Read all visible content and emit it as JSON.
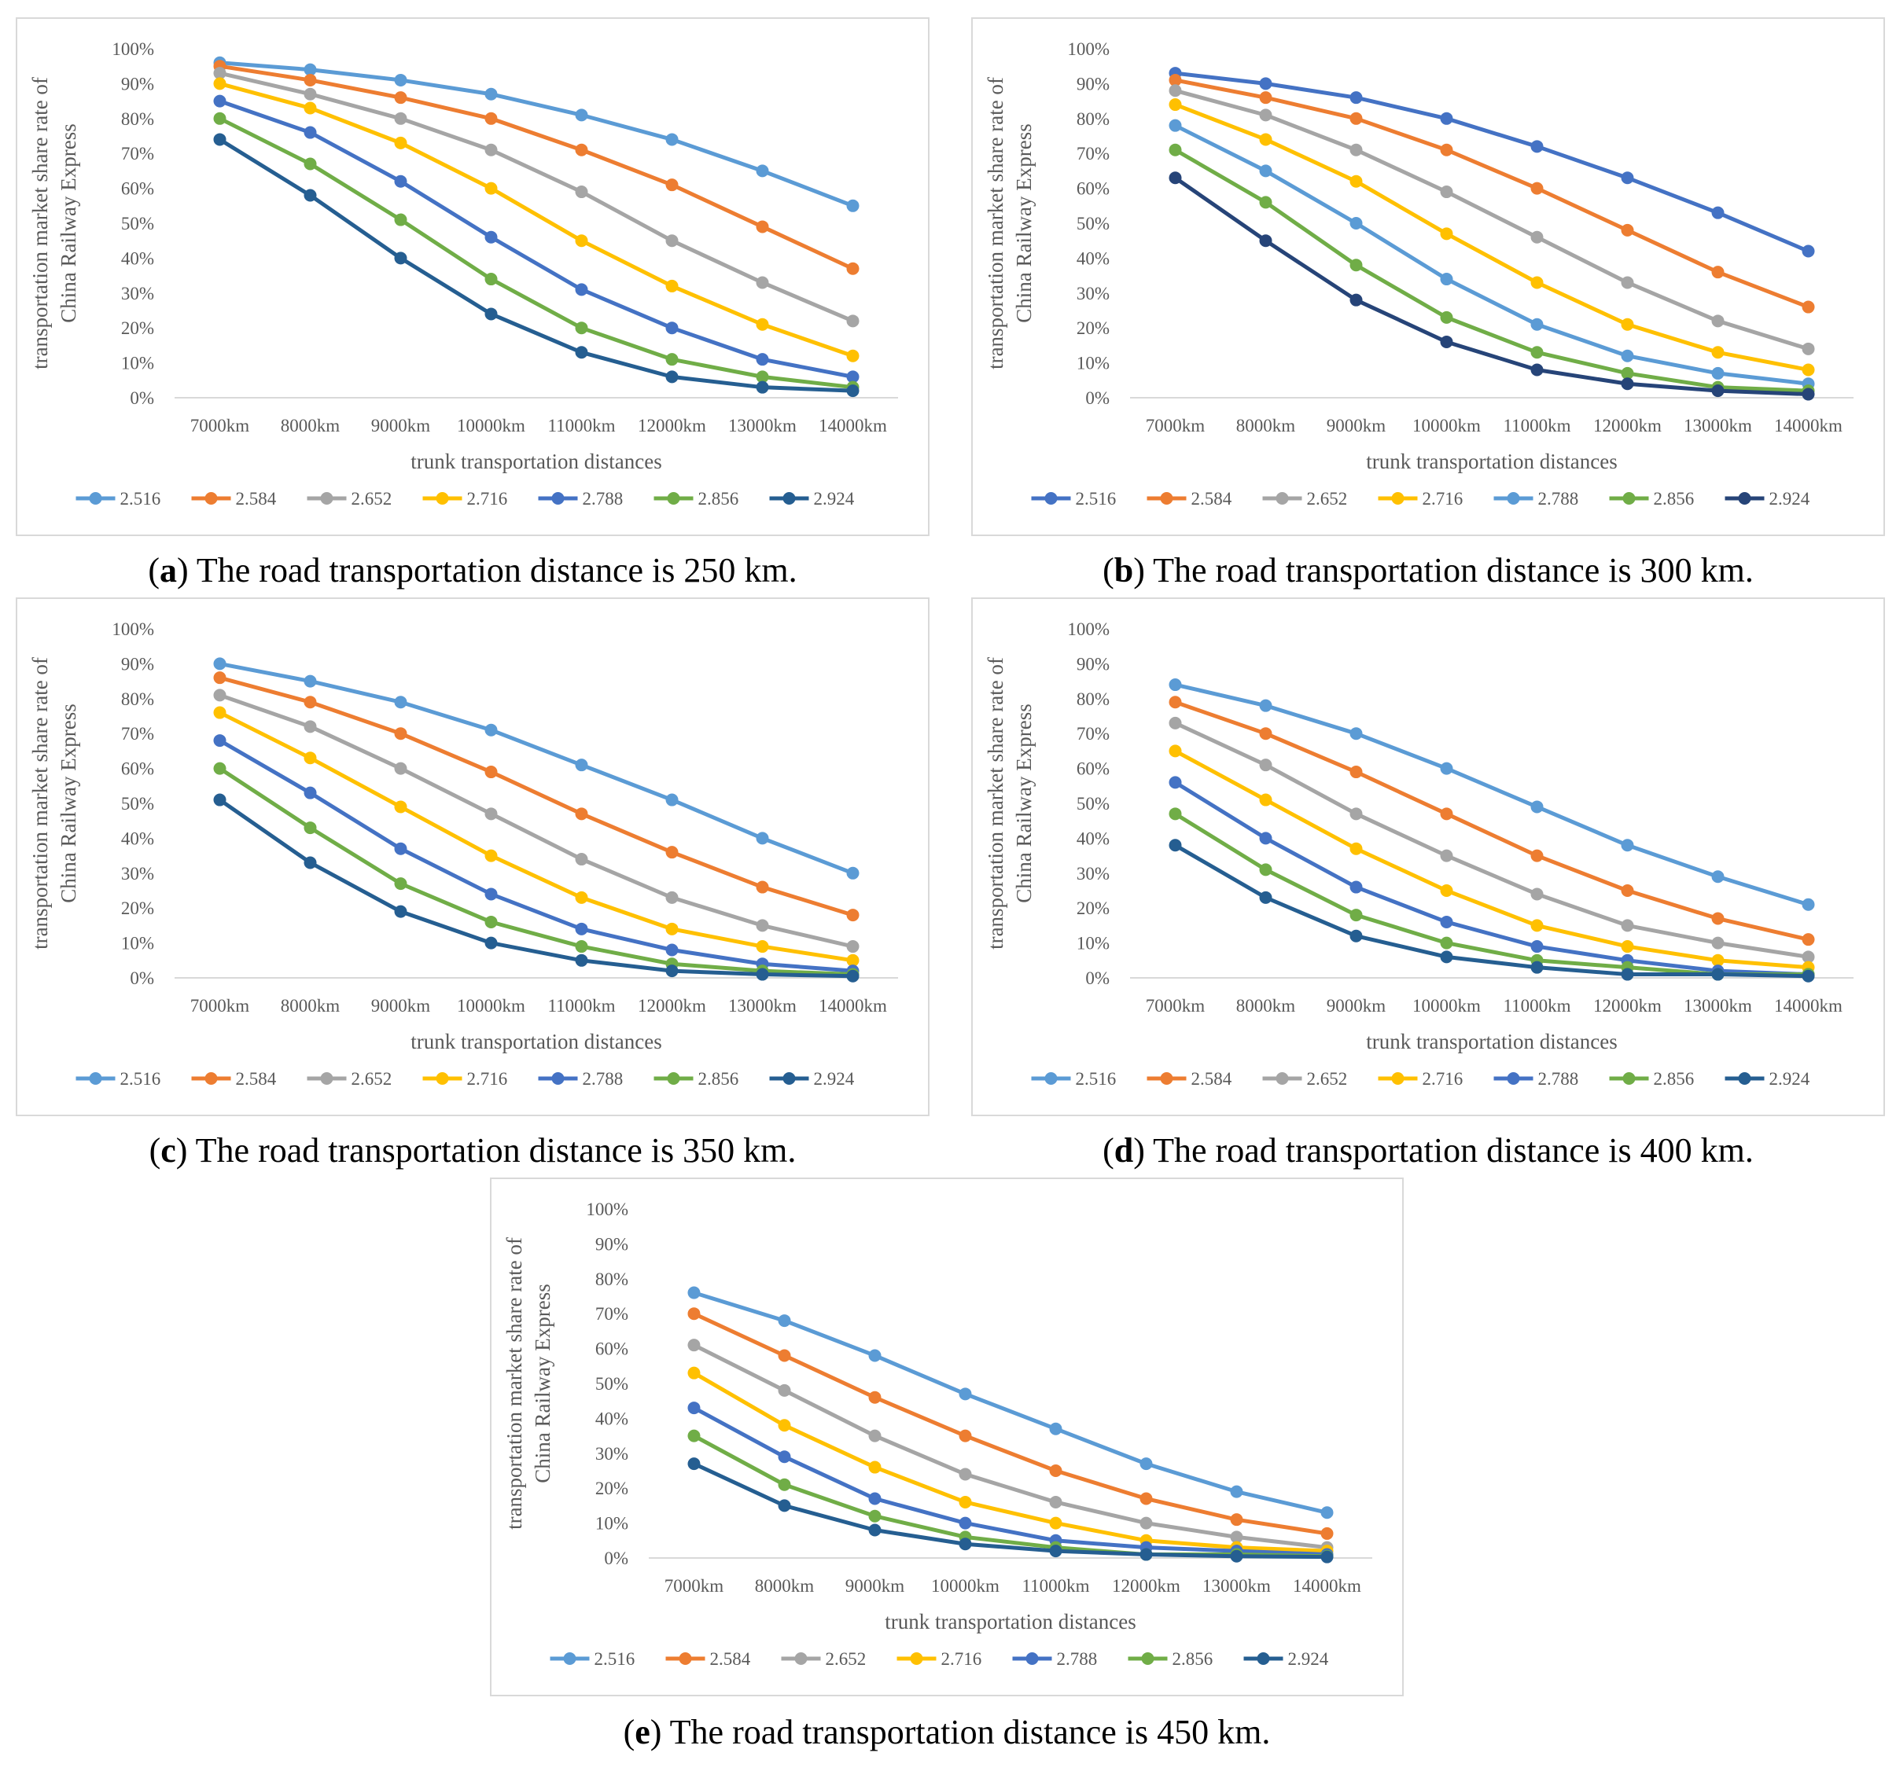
{
  "chart_data": [
    {
      "type": "line",
      "caption_letter": "a",
      "caption_open": "(",
      "caption_close": ")",
      "caption_text": " The road transportation distance is 250 km.",
      "ylabel_line1": "transportation market share rate of",
      "ylabel_line2": "China Railway Express",
      "xlabel": "trunk transportation distances",
      "categories": [
        "7000km",
        "8000km",
        "9000km",
        "10000km",
        "11000km",
        "12000km",
        "13000km",
        "14000km"
      ],
      "y_ticks": [
        "0%",
        "10%",
        "20%",
        "30%",
        "40%",
        "50%",
        "60%",
        "70%",
        "80%",
        "90%",
        "100%"
      ],
      "ylim": [
        0,
        100
      ],
      "legend_position": "bottom",
      "series": [
        {
          "name": "2.516",
          "color": "#5B9BD5",
          "values": [
            96,
            94,
            91,
            87,
            81,
            74,
            65,
            55
          ]
        },
        {
          "name": "2.584",
          "color": "#ED7D31",
          "values": [
            95,
            91,
            86,
            80,
            71,
            61,
            49,
            37
          ]
        },
        {
          "name": "2.652",
          "color": "#A5A5A5",
          "values": [
            93,
            87,
            80,
            71,
            59,
            45,
            33,
            22
          ]
        },
        {
          "name": "2.716",
          "color": "#FFC000",
          "values": [
            90,
            83,
            73,
            60,
            45,
            32,
            21,
            12
          ]
        },
        {
          "name": "2.788",
          "color": "#4472C4",
          "values": [
            85,
            76,
            62,
            46,
            31,
            20,
            11,
            6
          ]
        },
        {
          "name": "2.856",
          "color": "#70AD47",
          "values": [
            80,
            67,
            51,
            34,
            20,
            11,
            6,
            3
          ]
        },
        {
          "name": "2.924",
          "color": "#255E91",
          "values": [
            74,
            58,
            40,
            24,
            13,
            6,
            3,
            2
          ]
        }
      ]
    },
    {
      "type": "line",
      "caption_letter": "b",
      "caption_open": "(",
      "caption_close": ")",
      "caption_text": " The road transportation distance is 300 km.",
      "ylabel_line1": "transportation market share rate of",
      "ylabel_line2": "China Railway Express",
      "xlabel": "trunk transportation distances",
      "categories": [
        "7000km",
        "8000km",
        "9000km",
        "10000km",
        "11000km",
        "12000km",
        "13000km",
        "14000km"
      ],
      "y_ticks": [
        "0%",
        "10%",
        "20%",
        "30%",
        "40%",
        "50%",
        "60%",
        "70%",
        "80%",
        "90%",
        "100%"
      ],
      "ylim": [
        0,
        100
      ],
      "legend_position": "bottom",
      "series": [
        {
          "name": "2.516",
          "color": "#4472C4",
          "values": [
            93,
            90,
            86,
            80,
            72,
            63,
            53,
            42
          ]
        },
        {
          "name": "2.584",
          "color": "#ED7D31",
          "values": [
            91,
            86,
            80,
            71,
            60,
            48,
            36,
            26
          ]
        },
        {
          "name": "2.652",
          "color": "#A5A5A5",
          "values": [
            88,
            81,
            71,
            59,
            46,
            33,
            22,
            14
          ]
        },
        {
          "name": "2.716",
          "color": "#FFC000",
          "values": [
            84,
            74,
            62,
            47,
            33,
            21,
            13,
            8
          ]
        },
        {
          "name": "2.788",
          "color": "#5B9BD5",
          "values": [
            78,
            65,
            50,
            34,
            21,
            12,
            7,
            4
          ]
        },
        {
          "name": "2.856",
          "color": "#70AD47",
          "values": [
            71,
            56,
            38,
            23,
            13,
            7,
            3,
            2
          ]
        },
        {
          "name": "2.924",
          "color": "#264478",
          "values": [
            63,
            45,
            28,
            16,
            8,
            4,
            2,
            1
          ]
        }
      ]
    },
    {
      "type": "line",
      "caption_letter": "c",
      "caption_open": "(",
      "caption_close": ")",
      "caption_text": " The road transportation distance is 350 km.",
      "ylabel_line1": "transportation market share rate of",
      "ylabel_line2": "China Railway Express",
      "xlabel": "trunk transportation distances",
      "categories": [
        "7000km",
        "8000km",
        "9000km",
        "10000km",
        "11000km",
        "12000km",
        "13000km",
        "14000km"
      ],
      "y_ticks": [
        "0%",
        "10%",
        "20%",
        "30%",
        "40%",
        "50%",
        "60%",
        "70%",
        "80%",
        "90%",
        "100%"
      ],
      "ylim": [
        0,
        100
      ],
      "legend_position": "bottom",
      "series": [
        {
          "name": "2.516",
          "color": "#5B9BD5",
          "values": [
            90,
            85,
            79,
            71,
            61,
            51,
            40,
            30
          ]
        },
        {
          "name": "2.584",
          "color": "#ED7D31",
          "values": [
            86,
            79,
            70,
            59,
            47,
            36,
            26,
            18
          ]
        },
        {
          "name": "2.652",
          "color": "#A5A5A5",
          "values": [
            81,
            72,
            60,
            47,
            34,
            23,
            15,
            9
          ]
        },
        {
          "name": "2.716",
          "color": "#FFC000",
          "values": [
            76,
            63,
            49,
            35,
            23,
            14,
            9,
            5
          ]
        },
        {
          "name": "2.788",
          "color": "#4472C4",
          "values": [
            68,
            53,
            37,
            24,
            14,
            8,
            4,
            2
          ]
        },
        {
          "name": "2.856",
          "color": "#70AD47",
          "values": [
            60,
            43,
            27,
            16,
            9,
            4,
            2,
            1
          ]
        },
        {
          "name": "2.924",
          "color": "#255E91",
          "values": [
            51,
            33,
            19,
            10,
            5,
            2,
            1,
            0.5
          ]
        }
      ]
    },
    {
      "type": "line",
      "caption_letter": "d",
      "caption_open": "(",
      "caption_close": ")",
      "caption_text": " The road transportation distance is 400 km.",
      "ylabel_line1": "transportation market share rate of",
      "ylabel_line2": "China Railway Express",
      "xlabel": "trunk transportation distances",
      "categories": [
        "7000km",
        "8000km",
        "9000km",
        "10000km",
        "11000km",
        "12000km",
        "13000km",
        "14000km"
      ],
      "y_ticks": [
        "0%",
        "10%",
        "20%",
        "30%",
        "40%",
        "50%",
        "60%",
        "70%",
        "80%",
        "90%",
        "100%"
      ],
      "ylim": [
        0,
        100
      ],
      "legend_position": "bottom",
      "series": [
        {
          "name": "2.516",
          "color": "#5B9BD5",
          "values": [
            84,
            78,
            70,
            60,
            49,
            38,
            29,
            21
          ]
        },
        {
          "name": "2.584",
          "color": "#ED7D31",
          "values": [
            79,
            70,
            59,
            47,
            35,
            25,
            17,
            11
          ]
        },
        {
          "name": "2.652",
          "color": "#A5A5A5",
          "values": [
            73,
            61,
            47,
            35,
            24,
            15,
            10,
            6
          ]
        },
        {
          "name": "2.716",
          "color": "#FFC000",
          "values": [
            65,
            51,
            37,
            25,
            15,
            9,
            5,
            3
          ]
        },
        {
          "name": "2.788",
          "color": "#4472C4",
          "values": [
            56,
            40,
            26,
            16,
            9,
            5,
            2,
            1
          ]
        },
        {
          "name": "2.856",
          "color": "#70AD47",
          "values": [
            47,
            31,
            18,
            10,
            5,
            3,
            1,
            1
          ]
        },
        {
          "name": "2.924",
          "color": "#255E91",
          "values": [
            38,
            23,
            12,
            6,
            3,
            1,
            1,
            0.5
          ]
        }
      ]
    },
    {
      "type": "line",
      "caption_letter": "e",
      "caption_open": "(",
      "caption_close": ")",
      "caption_text": " The road transportation distance is 450 km.",
      "ylabel_line1": "transportation market share rate of",
      "ylabel_line2": "China Railway Express",
      "xlabel": "trunk transportation distances",
      "categories": [
        "7000km",
        "8000km",
        "9000km",
        "10000km",
        "11000km",
        "12000km",
        "13000km",
        "14000km"
      ],
      "y_ticks": [
        "0%",
        "10%",
        "20%",
        "30%",
        "40%",
        "50%",
        "60%",
        "70%",
        "80%",
        "90%",
        "100%"
      ],
      "ylim": [
        0,
        100
      ],
      "legend_position": "bottom",
      "series": [
        {
          "name": "2.516",
          "color": "#5B9BD5",
          "values": [
            76,
            68,
            58,
            47,
            37,
            27,
            19,
            13
          ]
        },
        {
          "name": "2.584",
          "color": "#ED7D31",
          "values": [
            70,
            58,
            46,
            35,
            25,
            17,
            11,
            7
          ]
        },
        {
          "name": "2.652",
          "color": "#A5A5A5",
          "values": [
            61,
            48,
            35,
            24,
            16,
            10,
            6,
            3
          ]
        },
        {
          "name": "2.716",
          "color": "#FFC000",
          "values": [
            53,
            38,
            26,
            16,
            10,
            5,
            3,
            2
          ]
        },
        {
          "name": "2.788",
          "color": "#4472C4",
          "values": [
            43,
            29,
            17,
            10,
            5,
            3,
            2,
            1
          ]
        },
        {
          "name": "2.856",
          "color": "#70AD47",
          "values": [
            35,
            21,
            12,
            6,
            3,
            1,
            1,
            0.5
          ]
        },
        {
          "name": "2.924",
          "color": "#255E91",
          "values": [
            27,
            15,
            8,
            4,
            2,
            1,
            0.5,
            0.3
          ]
        }
      ]
    }
  ]
}
